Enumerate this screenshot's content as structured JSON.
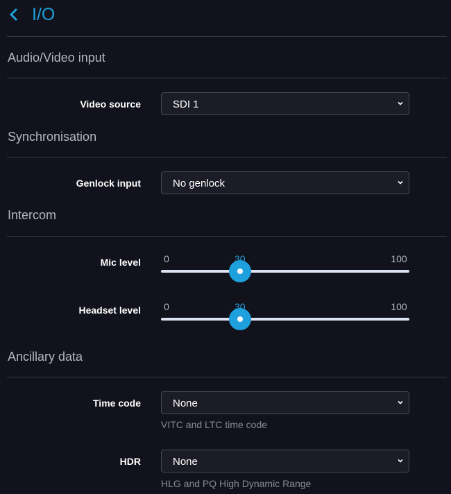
{
  "header": {
    "title": "I/O",
    "back_icon": "chevron-left-icon"
  },
  "colors": {
    "accent": "#1ea0dc",
    "background": "#12121c"
  },
  "sections": {
    "av": {
      "title": "Audio/Video input",
      "video_source": {
        "label": "Video source",
        "value": "SDI 1"
      }
    },
    "sync": {
      "title": "Synchronisation",
      "genlock": {
        "label": "Genlock input",
        "value": "No genlock"
      }
    },
    "intercom": {
      "title": "Intercom",
      "mic": {
        "label": "Mic level",
        "min": "0",
        "max": "100",
        "value": "30"
      },
      "headset": {
        "label": "Headset level",
        "min": "0",
        "max": "100",
        "value": "30"
      }
    },
    "anc": {
      "title": "Ancillary data",
      "timecode": {
        "label": "Time code",
        "value": "None",
        "hint": "VITC and LTC time code"
      },
      "hdr": {
        "label": "HDR",
        "value": "None",
        "hint": "HLG and PQ High Dynamic Range"
      }
    }
  }
}
